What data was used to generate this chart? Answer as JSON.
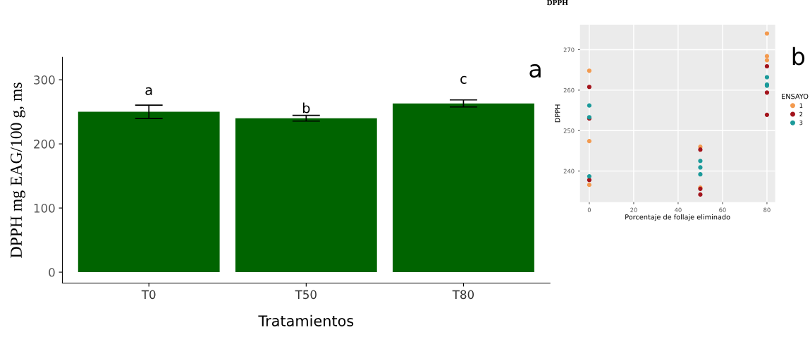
{
  "chart_data": [
    {
      "type": "bar",
      "ylabel": "DPPH mg EAG/100 g, ms",
      "xlabel": "Tratamientos",
      "categories": [
        "T0",
        "T50",
        "T80"
      ],
      "values": [
        250,
        240,
        263
      ],
      "errors": [
        10.5,
        4.5,
        5.5
      ],
      "color": "#006400",
      "ylim": [
        -17,
        335
      ],
      "yticks": [
        0,
        100,
        200,
        300
      ],
      "grid": false,
      "annotations": [
        "a",
        "b",
        "c",
        "a"
      ]
    },
    {
      "type": "scatter",
      "title": "DPPH",
      "xlabel": "Porcentaje de follaje eliminado",
      "ylabel": "DPPH",
      "legend_title": "ENSAYO",
      "xlim": [
        -4.2,
        83.7
      ],
      "xticks": [
        0,
        20,
        40,
        60,
        80
      ],
      "ylim": [
        232.3,
        276.2
      ],
      "yticks": [
        240,
        250,
        260,
        270
      ],
      "grid": true,
      "legend": "right",
      "marker": "circle",
      "series": [
        {
          "name": "1",
          "color": "#f39a4f",
          "x": [
            0,
            0,
            0,
            50,
            50,
            80,
            80,
            80
          ],
          "values": [
            264.8,
            247.4,
            236.6,
            246.0,
            235.9,
            274.0,
            268.4,
            267.4
          ]
        },
        {
          "name": "2",
          "color": "#a3141c",
          "x": [
            0,
            0,
            0,
            50,
            50,
            50,
            80,
            80,
            80
          ],
          "values": [
            260.8,
            253.0,
            237.8,
            245.3,
            235.6,
            234.2,
            265.9,
            259.4,
            253.9
          ]
        },
        {
          "name": "3",
          "color": "#1b9a9a",
          "x": [
            0,
            0,
            0,
            50,
            50,
            50,
            80,
            80,
            80
          ],
          "values": [
            256.2,
            253.3,
            238.7,
            242.5,
            240.9,
            239.2,
            263.2,
            261.4,
            261.1
          ]
        }
      ],
      "annotations": [
        "b"
      ]
    }
  ]
}
